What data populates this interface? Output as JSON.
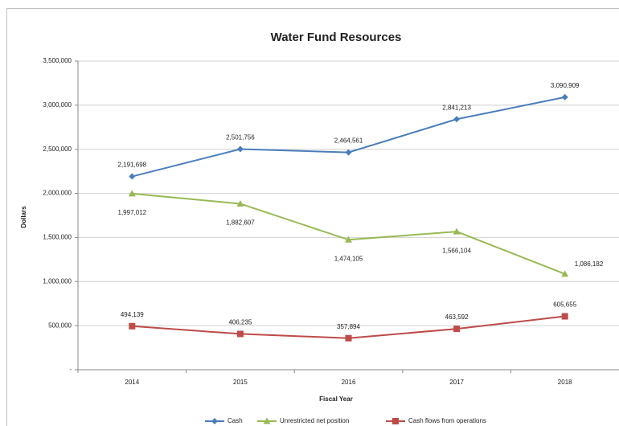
{
  "chart_data": {
    "type": "line",
    "title": "Water Fund Resources",
    "x_label": "Fiscal Year",
    "y_label": "Dollars",
    "categories": [
      "2014",
      "2015",
      "2016",
      "2017",
      "2018"
    ],
    "ylim": [
      0,
      3500000
    ],
    "yticks": [
      {
        "value": 0,
        "label": "-"
      },
      {
        "value": 500000,
        "label": "500,000"
      },
      {
        "value": 1000000,
        "label": "1,000,000"
      },
      {
        "value": 1500000,
        "label": "1,500,000"
      },
      {
        "value": 2000000,
        "label": "2,000,000"
      },
      {
        "value": 2500000,
        "label": "2,500,000"
      },
      {
        "value": 3000000,
        "label": "3,000,000"
      },
      {
        "value": 3500000,
        "label": "3,500,000"
      }
    ],
    "grid": true,
    "legend": "bottom",
    "series": [
      {
        "name": "Cash",
        "color": "#4a7ebb",
        "marker": "diamond",
        "values": [
          2191698,
          2501756,
          2464561,
          2841213,
          3090909
        ],
        "value_labels": [
          "2,191,698",
          "2,501,756",
          "2,464,561",
          "2,841,213",
          "3,090,909"
        ]
      },
      {
        "name": "Unrestricted net position",
        "color": "#98b954",
        "marker": "triangle",
        "values": [
          1997012,
          1882607,
          1474105,
          1566104,
          1086182
        ],
        "value_labels": [
          "1,997,012",
          "1,882,607",
          "1,474,105",
          "1,566,104",
          "1,086,182"
        ]
      },
      {
        "name": "Cash flows from operations",
        "color": "#be4b48",
        "marker": "square",
        "values": [
          494139,
          406235,
          357894,
          463592,
          605655
        ],
        "value_labels": [
          "494,139",
          "406,235",
          "357,894",
          "463,592",
          "605,655"
        ]
      }
    ]
  }
}
